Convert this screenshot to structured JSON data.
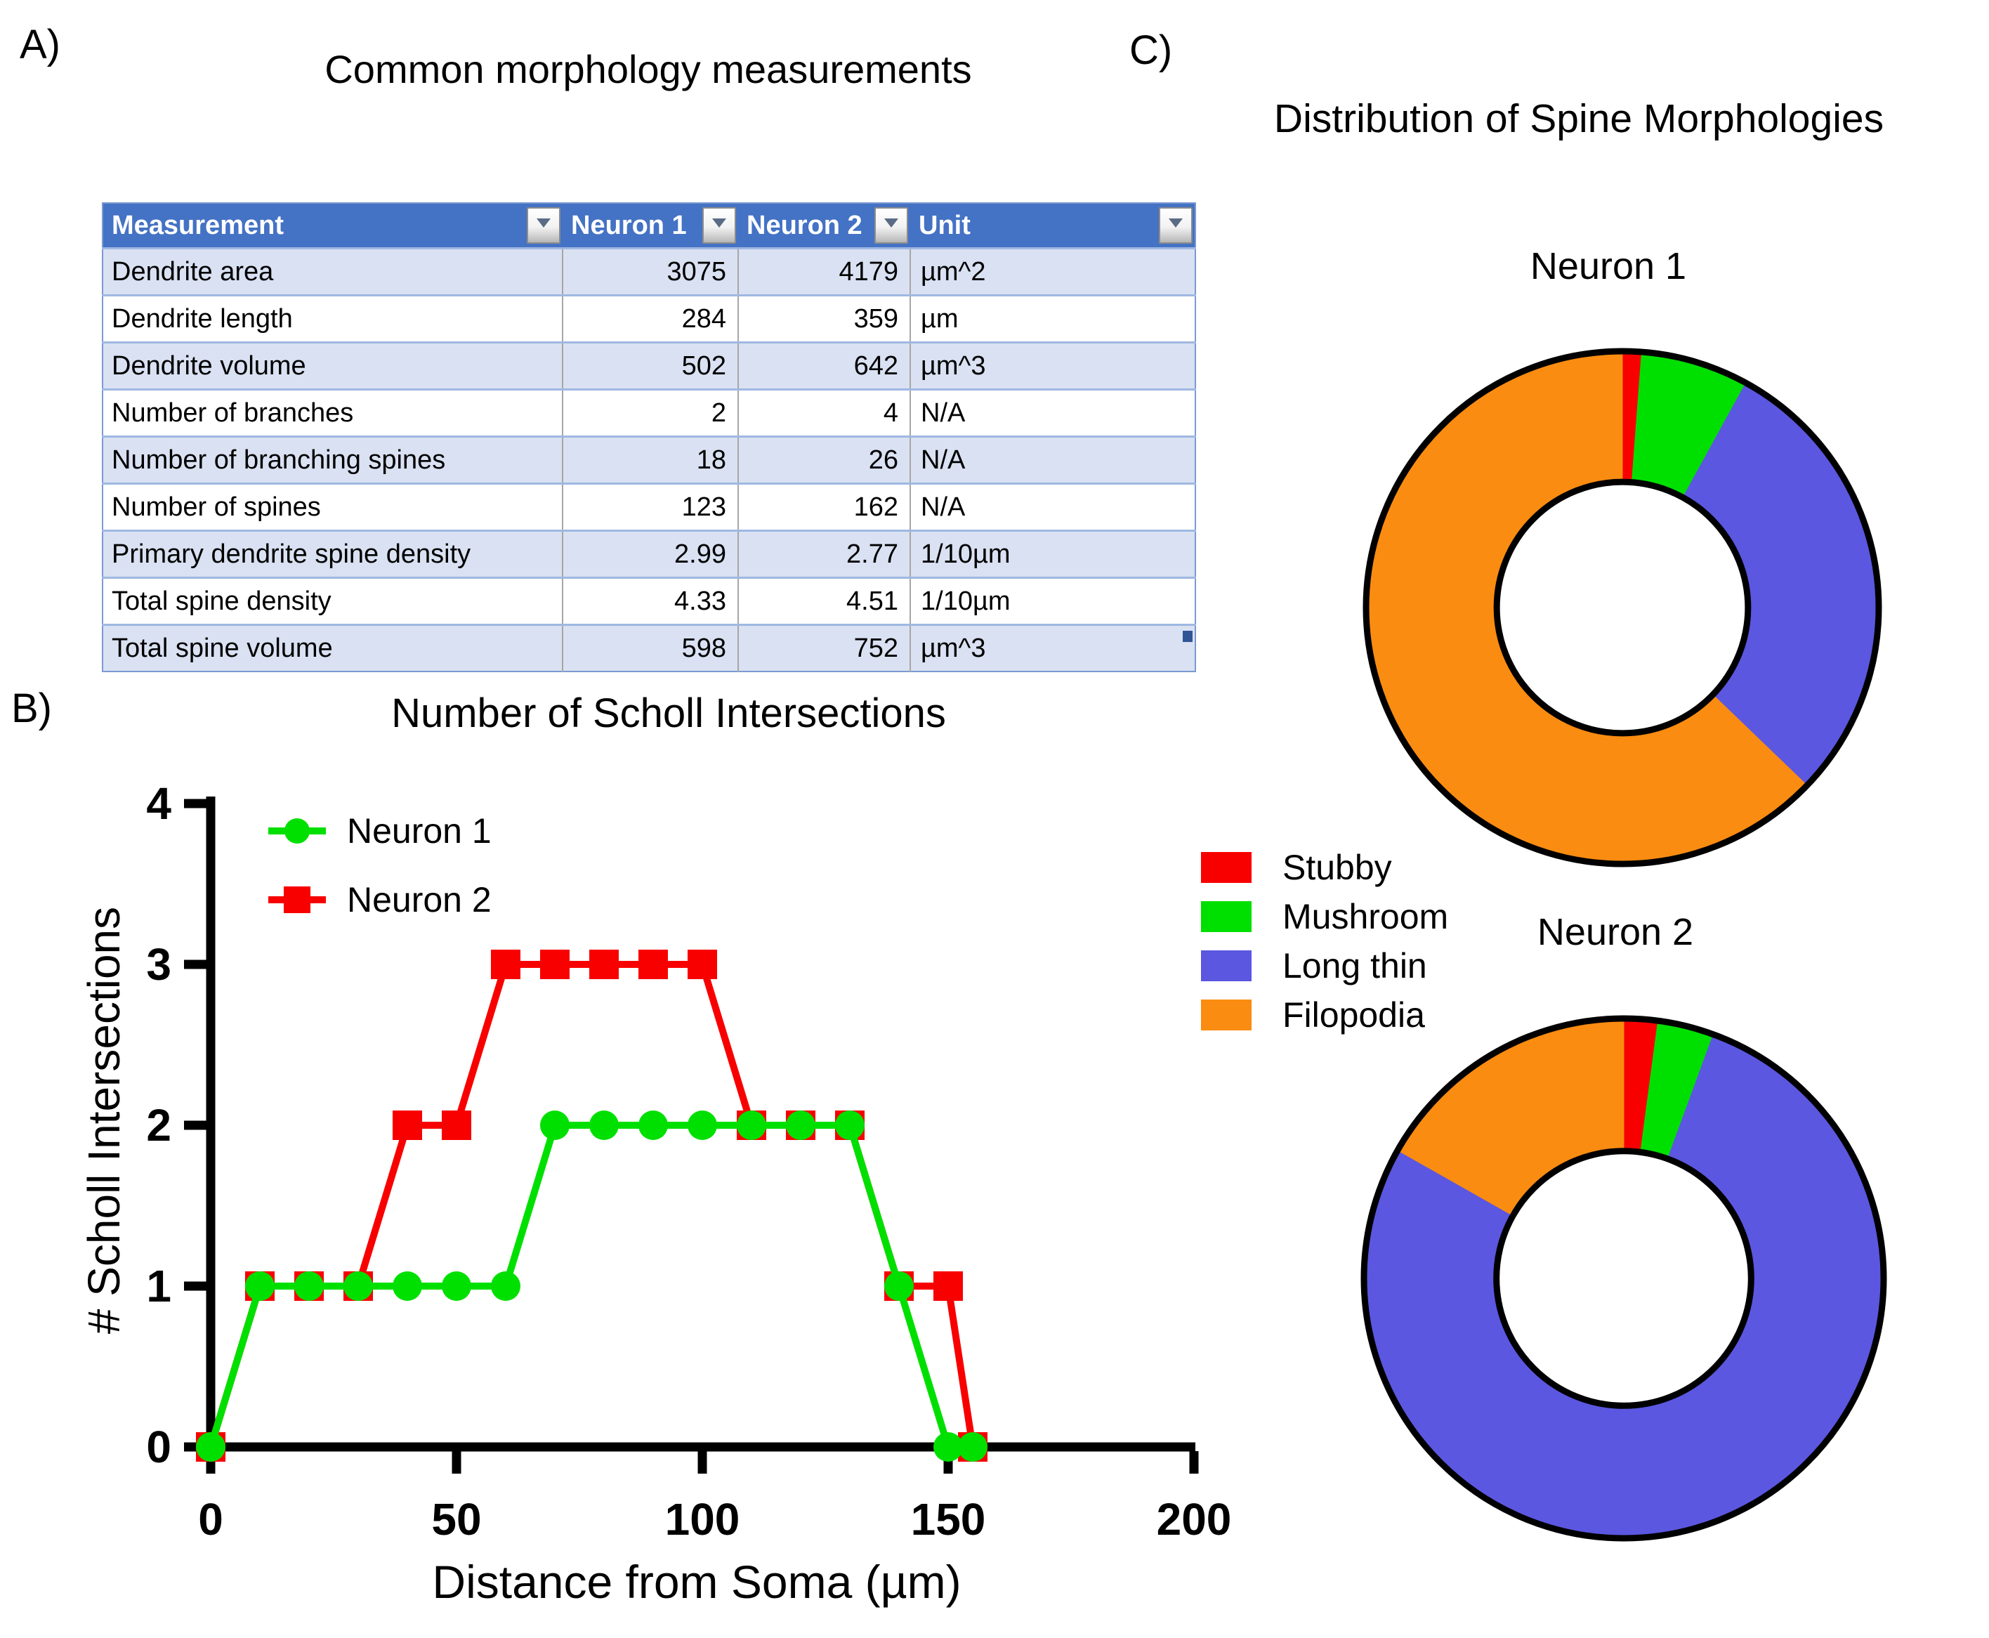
{
  "figure": {
    "background": "#ffffff"
  },
  "panels": {
    "a": {
      "label": "A)",
      "title": "Common morphology measurements",
      "table": {
        "columns": [
          "Measurement",
          "Neuron 1",
          "Neuron 2",
          "Unit"
        ],
        "has_filter_dropdowns": true,
        "header_bg": "#4472C4",
        "band_bg": "#D9E1F2",
        "rows": [
          [
            "Dendrite area",
            "3075",
            "4179",
            "µm^2"
          ],
          [
            "Dendrite length",
            "284",
            "359",
            "µm"
          ],
          [
            "Dendrite volume",
            "502",
            "642",
            "µm^3"
          ],
          [
            "Number of branches",
            "2",
            "4",
            "N/A"
          ],
          [
            "Number of branching spines",
            "18",
            "26",
            "N/A"
          ],
          [
            "Number of spines",
            "123",
            "162",
            "N/A"
          ],
          [
            "Primary dendrite spine density",
            "2.99",
            "2.77",
            "1/10µm"
          ],
          [
            "Total spine density",
            "4.33",
            "4.51",
            "1/10µm"
          ],
          [
            "Total spine volume",
            "598",
            "752",
            "µm^3"
          ]
        ]
      }
    },
    "b": {
      "label": "B)"
    },
    "c": {
      "label": "C)",
      "title": "Distribution of Spine Morphologies"
    }
  },
  "chart_data": [
    {
      "type": "line",
      "title": "Number of Scholl Intersections",
      "xlabel": "Distance from Soma (µm)",
      "ylabel": "# Scholl Intersections",
      "x": [
        0,
        10,
        20,
        30,
        40,
        50,
        60,
        70,
        80,
        90,
        100,
        110,
        120,
        130,
        140,
        150,
        155
      ],
      "series": [
        {
          "name": "Neuron 1",
          "color": "#00E000",
          "marker": "circle",
          "values": [
            0,
            1,
            1,
            1,
            1,
            1,
            1,
            2,
            2,
            2,
            2,
            2,
            2,
            2,
            1,
            0,
            0
          ]
        },
        {
          "name": "Neuron 2",
          "color": "#F80000",
          "marker": "square",
          "values": [
            0,
            1,
            1,
            1,
            2,
            2,
            3,
            3,
            3,
            3,
            3,
            2,
            2,
            2,
            1,
            1,
            0
          ]
        }
      ],
      "xlim": [
        0,
        200
      ],
      "ylim": [
        0,
        4
      ],
      "xticks": [
        0,
        50,
        100,
        150,
        200
      ],
      "yticks": [
        0,
        1,
        2,
        3,
        4
      ],
      "grid": false,
      "legend_position": "top-left-inside"
    },
    {
      "type": "pie",
      "subtype": "donut",
      "title": "Neuron 1",
      "categories": [
        "Stubby",
        "Mushroom",
        "Long thin",
        "Filopodia"
      ],
      "values": [
        1.2,
        6.8,
        29.2,
        62.8
      ],
      "colors": [
        "#F80000",
        "#00E000",
        "#5B57E0",
        "#FA8C11"
      ],
      "hole_ratio": 0.49,
      "start_angle_deg": 0,
      "direction": "clockwise"
    },
    {
      "type": "pie",
      "subtype": "donut",
      "title": "Neuron 2",
      "categories": [
        "Stubby",
        "Mushroom",
        "Long thin",
        "Filopodia"
      ],
      "values": [
        2.1,
        3.5,
        77.6,
        16.8
      ],
      "colors": [
        "#F80000",
        "#00E000",
        "#5B57E0",
        "#FA8C11"
      ],
      "hole_ratio": 0.49,
      "start_angle_deg": 0,
      "direction": "clockwise"
    }
  ]
}
